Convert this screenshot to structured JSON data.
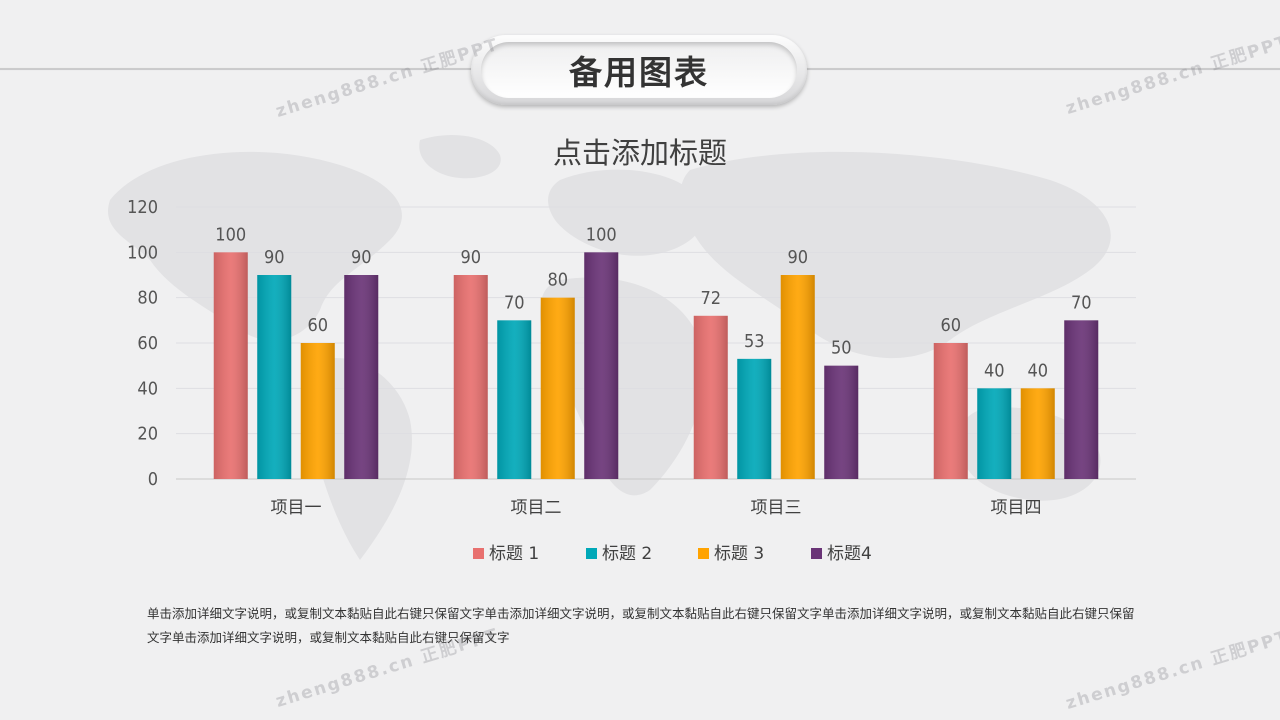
{
  "header": {
    "title": "备用图表"
  },
  "watermark": {
    "text": "zheng888.cn 正肥PPT"
  },
  "chart_data": {
    "type": "bar",
    "title": "点击添加标题",
    "categories": [
      "项目一",
      "项目二",
      "项目三",
      "项目四"
    ],
    "series": [
      {
        "name": "标题 1",
        "color": "#e8706f",
        "values": [
          100,
          90,
          72,
          60
        ]
      },
      {
        "name": "标题 2",
        "color": "#00a8b8",
        "values": [
          90,
          70,
          53,
          40
        ]
      },
      {
        "name": "标题 3",
        "color": "#ffa300",
        "values": [
          60,
          80,
          90,
          40
        ]
      },
      {
        "name": "标题4",
        "color": "#6a3477",
        "values": [
          90,
          100,
          50,
          70
        ]
      }
    ],
    "ylim": [
      0,
      120
    ],
    "yticks": [
      0,
      20,
      40,
      60,
      80,
      100,
      120
    ],
    "grid": true,
    "legend": "bottom",
    "data_labels": true
  },
  "description": "单击添加详细文字说明，或复制文本黏贴自此右键只保留文字单击添加详细文字说明，或复制文本黏贴自此右键只保留文字单击添加详细文字说明，或复制文本黏贴自此右键只保留文字单击添加详细文字说明，或复制文本黏贴自此右键只保留文字"
}
